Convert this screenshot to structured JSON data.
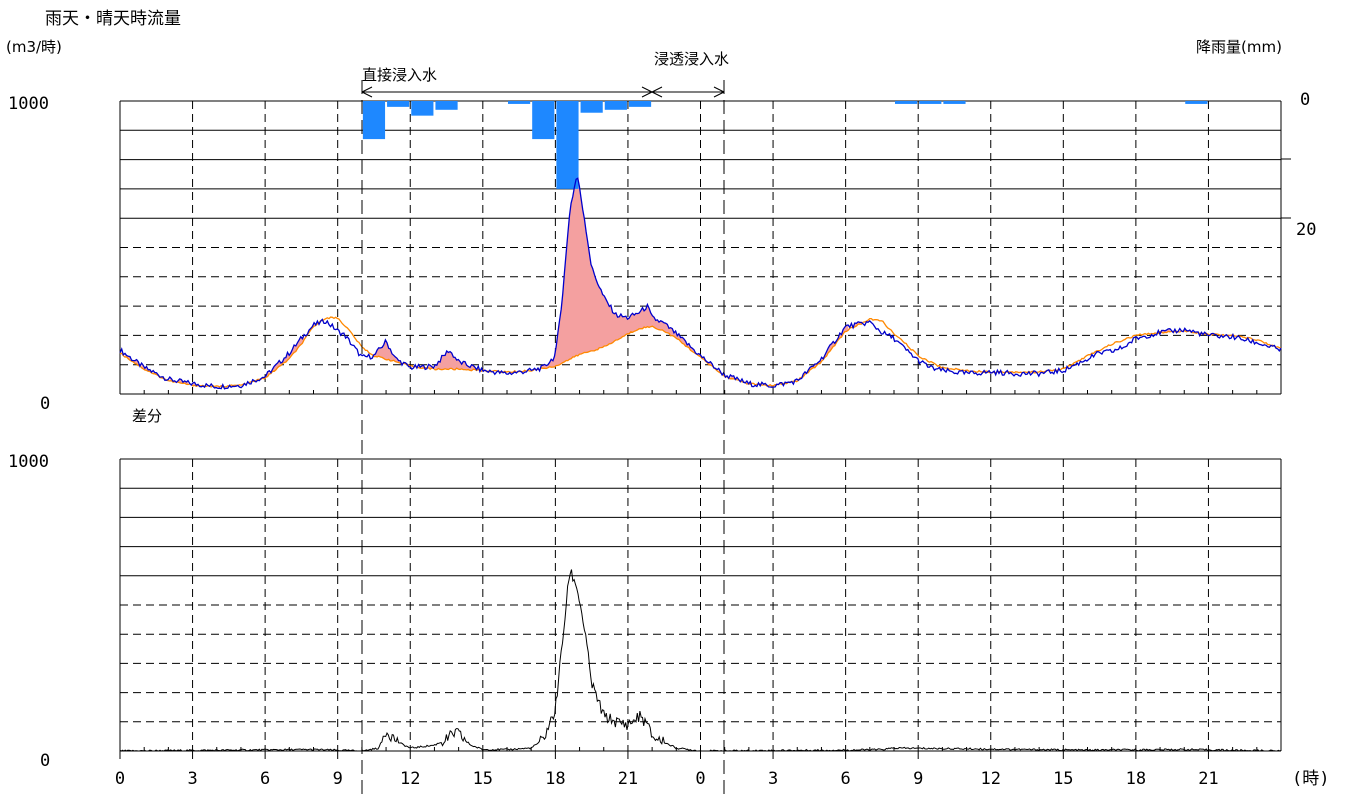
{
  "header": {
    "title": "雨天・晴天時流量",
    "left_unit": "(m3/時)",
    "right_unit": "降雨量(mm)"
  },
  "annotations": {
    "direct_inflow": "直接浸入水",
    "infiltration_inflow": "浸透浸入水",
    "difference_label": "差分"
  },
  "chart_data": [
    {
      "type": "line",
      "title": "",
      "ylabel": "(m3/時)",
      "y2label": "降雨量(mm)",
      "ylim": [
        0,
        1000
      ],
      "y2lim": [
        0,
        50
      ],
      "y_ticks": [
        "1000",
        "0"
      ],
      "y2_ticks": [
        "0",
        "20"
      ],
      "x_range_hours": [
        0,
        48
      ],
      "grid": true,
      "series": [
        {
          "color": "#0000cc",
          "x": [
            0,
            0.5,
            1,
            2,
            3,
            4,
            5,
            6,
            7,
            7.5,
            8,
            8.5,
            9,
            9.3,
            10,
            10.5,
            11,
            11.4,
            12,
            13,
            13.6,
            14,
            15,
            16,
            17,
            17.5,
            18,
            18.3,
            18.6,
            18.9,
            19.2,
            19.5,
            20,
            20.5,
            21,
            21.5,
            21.8,
            22,
            22.5,
            23,
            24,
            25,
            26,
            27,
            28,
            29,
            30,
            31,
            31.5,
            32,
            32.5,
            33,
            33.5,
            34,
            35,
            36,
            37,
            38,
            39,
            40,
            40.5,
            41,
            41.5,
            42,
            43,
            44,
            45,
            46,
            47,
            48
          ],
          "y": [
            150,
            120,
            90,
            50,
            35,
            25,
            30,
            60,
            140,
            190,
            235,
            250,
            215,
            200,
            125,
            130,
            180,
            120,
            90,
            95,
            150,
            110,
            80,
            70,
            80,
            90,
            130,
            340,
            630,
            750,
            600,
            430,
            330,
            270,
            260,
            280,
            300,
            260,
            240,
            205,
            130,
            65,
            35,
            28,
            45,
            120,
            230,
            245,
            210,
            190,
            150,
            115,
            90,
            80,
            70,
            75,
            70,
            70,
            80,
            120,
            140,
            145,
            160,
            190,
            210,
            220,
            200,
            195,
            175,
            150
          ]
        },
        {
          "color": "#ff8800",
          "x": [
            0,
            1,
            2,
            3,
            4,
            5,
            6,
            7,
            7.5,
            8,
            8.5,
            9,
            9.5,
            10,
            10.5,
            11,
            12,
            13,
            14,
            15,
            16,
            17,
            18,
            19,
            20,
            21,
            21.5,
            22,
            22.5,
            23,
            24,
            25,
            26,
            27,
            28,
            29,
            30,
            31,
            31.5,
            32,
            32.5,
            33,
            34,
            35,
            36,
            37,
            38,
            39,
            40,
            41,
            42,
            43,
            44,
            45,
            46,
            47,
            48
          ],
          "y": [
            140,
            85,
            45,
            30,
            25,
            30,
            55,
            120,
            170,
            230,
            260,
            260,
            215,
            160,
            130,
            120,
            95,
            85,
            85,
            80,
            75,
            80,
            95,
            135,
            160,
            205,
            225,
            230,
            215,
            190,
            125,
            60,
            35,
            28,
            45,
            110,
            215,
            255,
            250,
            205,
            170,
            130,
            90,
            80,
            75,
            75,
            75,
            85,
            130,
            170,
            200,
            210,
            215,
            205,
            200,
            185,
            155
          ]
        }
      ],
      "rainfall": {
        "color": "#1e88ff",
        "x": [
          10,
          11,
          12,
          13,
          16,
          17,
          18,
          19,
          20,
          21,
          32,
          33,
          34,
          44
        ],
        "values": [
          6.5,
          1,
          2.5,
          1.5,
          0.5,
          6.5,
          15,
          2,
          1.5,
          1,
          0.5,
          0.5,
          0.5,
          0.5
        ]
      }
    },
    {
      "type": "line",
      "title": "",
      "ylim": [
        0,
        1000
      ],
      "y_ticks": [
        "1000",
        "0"
      ],
      "x_range_hours": [
        0,
        48
      ],
      "x_ticks": [
        "0",
        "3",
        "6",
        "9",
        "12",
        "15",
        "18",
        "21",
        "0",
        "3",
        "6",
        "9",
        "12",
        "15",
        "18",
        "21"
      ],
      "xlabel": "(時)",
      "grid": true,
      "series": [
        {
          "color": "#000000",
          "x": [
            0,
            8,
            10,
            10.7,
            11,
            11.5,
            12,
            12.5,
            13,
            13.5,
            13.9,
            14.5,
            15,
            16,
            17,
            17.5,
            18,
            18.3,
            18.6,
            18.9,
            19.2,
            19.5,
            20,
            20.5,
            21,
            21.5,
            21.8,
            22,
            22.5,
            23,
            24,
            30,
            31.5,
            32,
            40,
            44,
            48
          ],
          "y": [
            0,
            5,
            0,
            10,
            70,
            30,
            10,
            15,
            20,
            40,
            65,
            20,
            5,
            5,
            10,
            40,
            140,
            380,
            620,
            560,
            420,
            230,
            120,
            100,
            90,
            120,
            90,
            50,
            30,
            10,
            0,
            3,
            5,
            10,
            3,
            5,
            0
          ]
        }
      ]
    }
  ]
}
